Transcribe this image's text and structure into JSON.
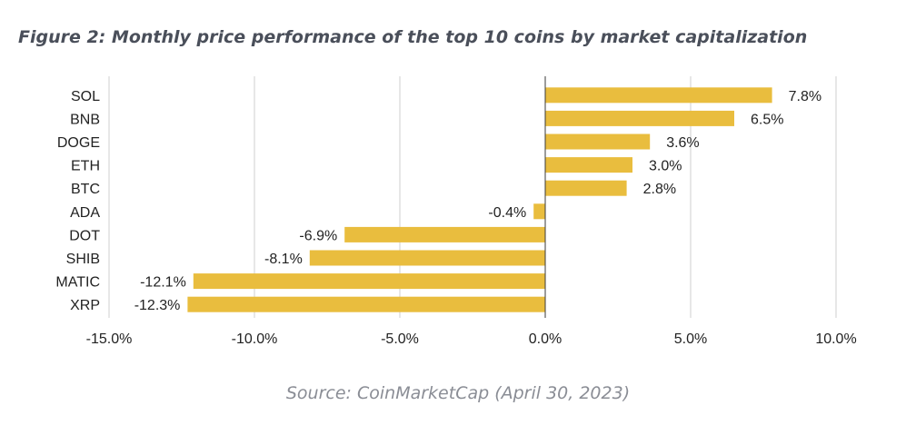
{
  "title": "Figure 2: Monthly price performance of the top 10 coins by market capitalization",
  "source": "Source: CoinMarketCap (April 30, 2023)",
  "colors": {
    "bar": "#e9bd3e",
    "grid": "#cfcfcf",
    "axis": "#3a3a3a"
  },
  "chart_data": {
    "type": "bar",
    "orientation": "horizontal",
    "categories": [
      "SOL",
      "BNB",
      "DOGE",
      "ETH",
      "BTC",
      "ADA",
      "DOT",
      "SHIB",
      "MATIC",
      "XRP"
    ],
    "values": [
      7.8,
      6.5,
      3.6,
      3.0,
      2.8,
      -0.4,
      -6.9,
      -8.1,
      -12.1,
      -12.3
    ],
    "data_labels": [
      "7.8%",
      "6.5%",
      "3.6%",
      "3.0%",
      "2.8%",
      "-0.4%",
      "-6.9%",
      "-8.1%",
      "-12.1%",
      "-12.3%"
    ],
    "xlim": [
      -15,
      10
    ],
    "xticks": [
      -15,
      -10,
      -5,
      0,
      5,
      10
    ],
    "xtick_labels": [
      "-15.0%",
      "-10.0%",
      "-5.0%",
      "0.0%",
      "5.0%",
      "10.0%"
    ],
    "grid": "vertical",
    "legend": "none"
  }
}
